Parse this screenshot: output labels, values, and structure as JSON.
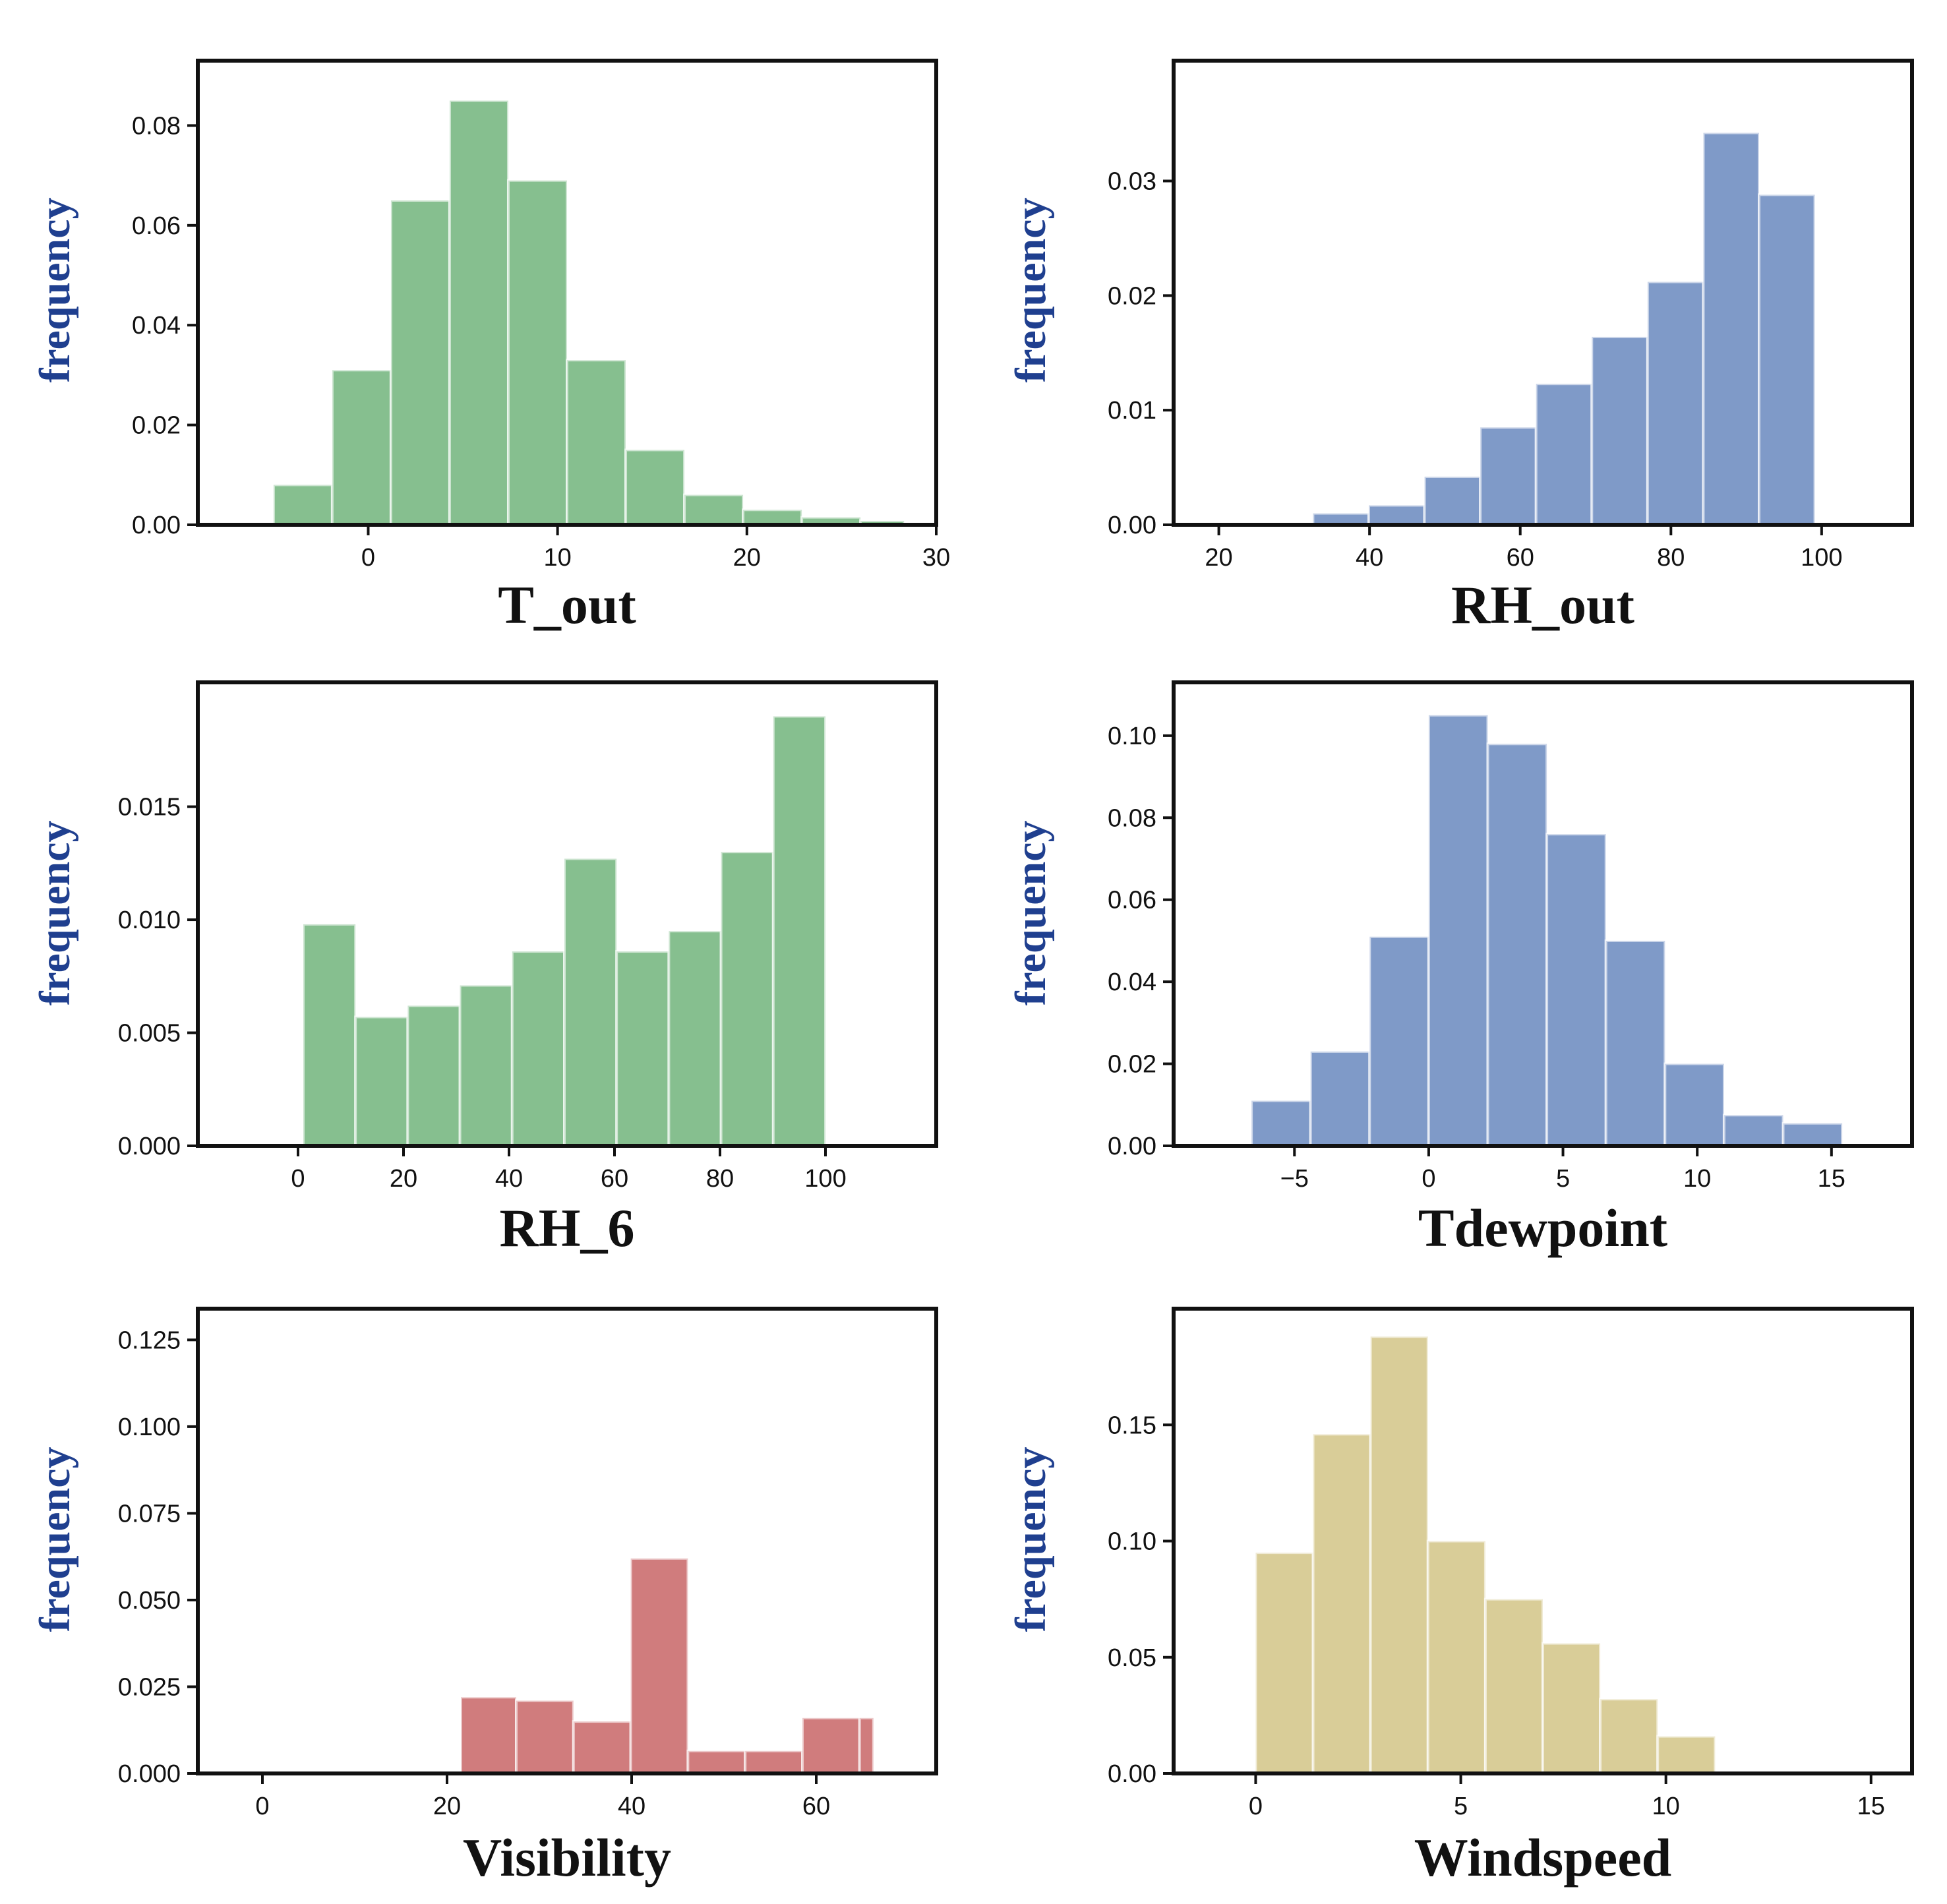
{
  "chart_data": [
    {
      "type": "bar",
      "panel": "top-left",
      "xlabel": "T_out",
      "ylabel": "frequency",
      "color": "#86bf8f",
      "xlim": [
        -9,
        30
      ],
      "ylim": [
        0,
        0.093
      ],
      "xticks": [
        0,
        10,
        20,
        30
      ],
      "xtick_labels": [
        "0",
        "10",
        "20",
        "30"
      ],
      "yticks": [
        0,
        0.02,
        0.04,
        0.06,
        0.08
      ],
      "ytick_labels": [
        "0.00",
        "0.02",
        "0.04",
        "0.06",
        "0.08"
      ],
      "bin_edges": [
        -5,
        -1.9,
        1.2,
        4.3,
        7.4,
        10.5,
        13.6,
        16.7,
        19.8,
        22.9,
        26.0,
        28.3
      ],
      "values": [
        0.008,
        0.031,
        0.065,
        0.085,
        0.069,
        0.033,
        0.015,
        0.006,
        0.003,
        0.0015,
        0.0008
      ]
    },
    {
      "type": "bar",
      "panel": "top-right",
      "xlabel": "RH_out",
      "ylabel": "frequency",
      "color": "#7f9ac8",
      "xlim": [
        14,
        112
      ],
      "ylim": [
        0,
        0.0405
      ],
      "xticks": [
        20,
        40,
        60,
        80,
        100
      ],
      "xtick_labels": [
        "20",
        "40",
        "60",
        "80",
        "100"
      ],
      "yticks": [
        0,
        0.01,
        0.02,
        0.03
      ],
      "ytick_labels": [
        "0.00",
        "0.01",
        "0.02",
        "0.03"
      ],
      "bin_edges": [
        32.5,
        39.9,
        47.3,
        54.7,
        62.1,
        69.5,
        76.9,
        84.3,
        91.7,
        99.1
      ],
      "values": [
        0.001,
        0.0017,
        0.0042,
        0.0085,
        0.0123,
        0.0164,
        0.0212,
        0.0342,
        0.0288
      ]
    },
    {
      "type": "bar",
      "panel": "middle-left",
      "xlabel": "RH_6",
      "ylabel": "frequency",
      "color": "#86bf8f",
      "xlim": [
        -19,
        121
      ],
      "ylim": [
        0,
        0.0205
      ],
      "xticks": [
        0,
        20,
        40,
        60,
        80,
        100
      ],
      "xtick_labels": [
        "0",
        "20",
        "40",
        "60",
        "80",
        "100"
      ],
      "yticks": [
        0,
        0.005,
        0.01,
        0.015
      ],
      "ytick_labels": [
        "0.000",
        "0.005",
        "0.010",
        "0.015"
      ],
      "bin_edges": [
        1,
        10.9,
        20.8,
        30.7,
        40.6,
        50.5,
        60.4,
        70.3,
        80.2,
        90.1,
        100
      ],
      "values": [
        0.0098,
        0.0057,
        0.0062,
        0.0071,
        0.0086,
        0.0127,
        0.0086,
        0.0095,
        0.013,
        0.019
      ]
    },
    {
      "type": "bar",
      "panel": "middle-right",
      "xlabel": "Tdewpoint",
      "ylabel": "frequency",
      "color": "#7f9ac8",
      "xlim": [
        -9.5,
        18
      ],
      "ylim": [
        0,
        0.113
      ],
      "xticks": [
        -5,
        0,
        5,
        10,
        15
      ],
      "xtick_labels": [
        "−5",
        "0",
        "5",
        "10",
        "15"
      ],
      "yticks": [
        0,
        0.02,
        0.04,
        0.06,
        0.08,
        0.1
      ],
      "ytick_labels": [
        "0.00",
        "0.02",
        "0.04",
        "0.06",
        "0.08",
        "0.10"
      ],
      "bin_edges": [
        -6.6,
        -4.4,
        -2.2,
        0,
        2.2,
        4.4,
        6.6,
        8.8,
        11.0,
        13.2,
        15.4
      ],
      "values": [
        0.011,
        0.023,
        0.051,
        0.105,
        0.098,
        0.076,
        0.05,
        0.02,
        0.0075,
        0.0055
      ]
    },
    {
      "type": "bar",
      "panel": "bottom-left",
      "xlabel": "Visibility",
      "ylabel": "frequency",
      "color": "#d07c7d",
      "xlim": [
        -7,
        73
      ],
      "ylim": [
        0,
        0.134
      ],
      "xticks": [
        0,
        20,
        40,
        60
      ],
      "xtick_labels": [
        "0",
        "20",
        "40",
        "60"
      ],
      "yticks": [
        0,
        0.025,
        0.05,
        0.075,
        0.1,
        0.125
      ],
      "ytick_labels": [
        "0.000",
        "0.025",
        "0.050",
        "0.075",
        "0.100",
        "0.125"
      ],
      "bin_edges": [
        1,
        21.5,
        27.5,
        33.7,
        39.9,
        46.1,
        52.3,
        58.5,
        64.7,
        66.2
      ],
      "values": [
        0.0003,
        0.022,
        0.021,
        0.015,
        0.062,
        0.0065,
        0.0065,
        0.016,
        0.016
      ]
    },
    {
      "type": "bar",
      "panel": "bottom-right",
      "xlabel": "Windspeed",
      "ylabel": "frequency",
      "color": "#d9cd98",
      "xlim": [
        -2,
        16
      ],
      "ylim": [
        0,
        0.2
      ],
      "xticks": [
        0,
        5,
        10,
        15
      ],
      "xtick_labels": [
        "0",
        "5",
        "10",
        "15"
      ],
      "yticks": [
        0,
        0.05,
        0.1,
        0.15
      ],
      "ytick_labels": [
        "0.00",
        "0.05",
        "0.10",
        "0.15"
      ],
      "bin_edges": [
        0,
        1.4,
        2.8,
        4.2,
        5.6,
        7.0,
        8.4,
        9.8,
        11.2
      ],
      "values": [
        0.095,
        0.146,
        0.188,
        0.1,
        0.075,
        0.056,
        0.032,
        0.016
      ]
    }
  ]
}
